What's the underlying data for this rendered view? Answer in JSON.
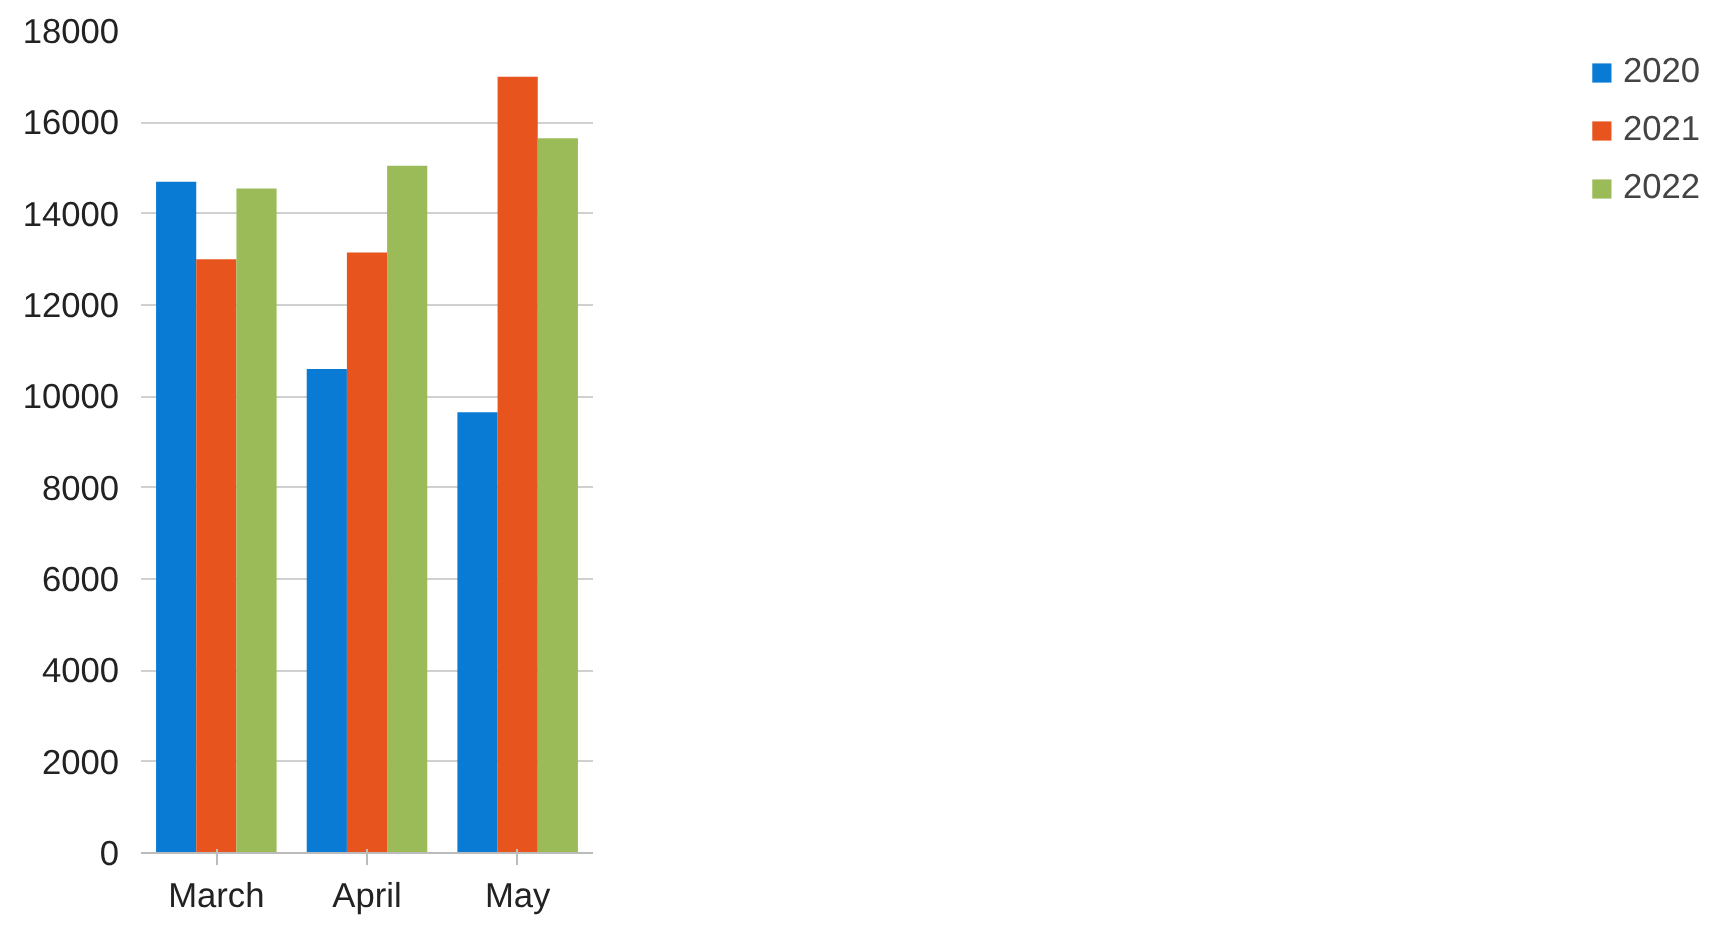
{
  "chart_data": {
    "type": "bar",
    "categories": [
      "March",
      "April",
      "May"
    ],
    "series": [
      {
        "name": "2020",
        "color": "#0a7bd4",
        "values": [
          14700,
          10600,
          9650
        ]
      },
      {
        "name": "2021",
        "color": "#e8541e",
        "values": [
          13000,
          13150,
          17000
        ]
      },
      {
        "name": "2022",
        "color": "#9bbb59",
        "values": [
          14550,
          15050,
          15650
        ]
      }
    ],
    "ylim": [
      0,
      18000
    ],
    "yticks": [
      0,
      2000,
      4000,
      6000,
      8000,
      10000,
      12000,
      14000,
      16000,
      18000
    ],
    "grid": "y",
    "legend": "right"
  }
}
